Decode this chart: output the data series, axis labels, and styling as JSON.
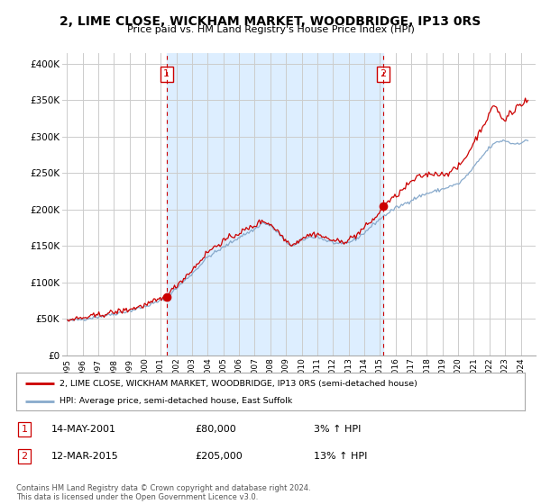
{
  "title_line1": "2, LIME CLOSE, WICKHAM MARKET, WOODBRIDGE, IP13 0RS",
  "title_line2": "Price paid vs. HM Land Registry's House Price Index (HPI)",
  "ytick_labels": [
    "£0",
    "£50K",
    "£100K",
    "£150K",
    "£200K",
    "£250K",
    "£300K",
    "£350K",
    "£400K"
  ],
  "ytick_values": [
    0,
    50000,
    100000,
    150000,
    200000,
    250000,
    300000,
    350000,
    400000
  ],
  "ylim": [
    0,
    415000
  ],
  "legend_line1": "2, LIME CLOSE, WICKHAM MARKET, WOODBRIDGE, IP13 0RS (semi-detached house)",
  "legend_line2": "HPI: Average price, semi-detached house, East Suffolk",
  "sale1_date": "14-MAY-2001",
  "sale1_price": "£80,000",
  "sale1_hpi": "3% ↑ HPI",
  "sale2_date": "12-MAR-2015",
  "sale2_price": "£205,000",
  "sale2_hpi": "13% ↑ HPI",
  "footnote": "Contains HM Land Registry data © Crown copyright and database right 2024.\nThis data is licensed under the Open Government Licence v3.0.",
  "line_color_red": "#cc0000",
  "line_color_blue": "#88aacc",
  "shade_color": "#ddeeff",
  "background_color": "#ffffff",
  "grid_color": "#cccccc",
  "sale1_x": 2001.37,
  "sale1_y": 80000,
  "sale2_x": 2015.19,
  "sale2_y": 205000,
  "xlim_left": 1994.7,
  "xlim_right": 2024.95
}
